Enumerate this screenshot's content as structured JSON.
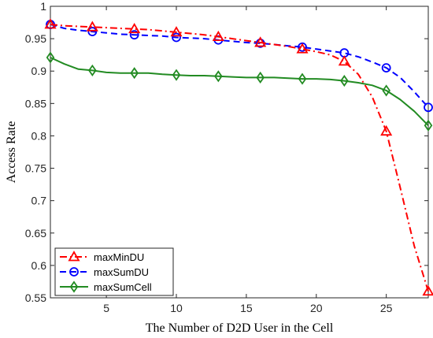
{
  "chart_data": {
    "type": "line",
    "title": "",
    "xlabel": "The Number of D2D User in the Cell",
    "ylabel": "Access Rate",
    "xlim": [
      1,
      28
    ],
    "ylim": [
      0.55,
      1.0
    ],
    "xticks": [
      5,
      10,
      15,
      20,
      25
    ],
    "yticks": [
      0.55,
      0.6,
      0.65,
      0.7,
      0.75,
      0.8,
      0.85,
      0.9,
      0.95,
      1
    ],
    "ytick_labels": [
      "0.55",
      "0.6",
      "0.65",
      "0.7",
      "0.75",
      "0.8",
      "0.85",
      "0.9",
      "0.95",
      "1"
    ],
    "legend_position": "bottom-left",
    "grid": false,
    "series": [
      {
        "name": "maxMinDU",
        "color": "#ff0000",
        "line_style": "dash-dot",
        "marker": "triangle",
        "x": [
          1,
          2,
          3,
          4,
          5,
          6,
          7,
          8,
          9,
          10,
          11,
          12,
          13,
          14,
          15,
          16,
          17,
          18,
          19,
          20,
          21,
          22,
          23,
          24,
          25,
          26,
          27,
          28
        ],
        "y": [
          0.972,
          0.97,
          0.969,
          0.968,
          0.967,
          0.966,
          0.965,
          0.964,
          0.962,
          0.96,
          0.958,
          0.956,
          0.953,
          0.95,
          0.947,
          0.944,
          0.941,
          0.938,
          0.934,
          0.93,
          0.925,
          0.915,
          0.895,
          0.86,
          0.807,
          0.72,
          0.63,
          0.56
        ],
        "marker_x": [
          1,
          4,
          7,
          10,
          13,
          16,
          19,
          22,
          25,
          28
        ]
      },
      {
        "name": "maxSumDU",
        "color": "#0000ff",
        "line_style": "dashed",
        "marker": "circle",
        "x": [
          1,
          2,
          3,
          4,
          5,
          6,
          7,
          8,
          9,
          10,
          11,
          12,
          13,
          14,
          15,
          16,
          17,
          18,
          19,
          20,
          21,
          22,
          23,
          24,
          25,
          26,
          27,
          28
        ],
        "y": [
          0.972,
          0.966,
          0.963,
          0.961,
          0.959,
          0.957,
          0.956,
          0.955,
          0.954,
          0.952,
          0.951,
          0.95,
          0.948,
          0.946,
          0.944,
          0.943,
          0.941,
          0.939,
          0.937,
          0.934,
          0.931,
          0.928,
          0.922,
          0.914,
          0.905,
          0.89,
          0.868,
          0.844
        ],
        "marker_x": [
          1,
          4,
          7,
          10,
          13,
          16,
          19,
          22,
          25,
          28
        ]
      },
      {
        "name": "maxSumCell",
        "color": "#228B22",
        "line_style": "solid",
        "marker": "diamond",
        "x": [
          1,
          2,
          3,
          4,
          5,
          6,
          7,
          8,
          9,
          10,
          11,
          12,
          13,
          14,
          15,
          16,
          17,
          18,
          19,
          20,
          21,
          22,
          23,
          24,
          25,
          26,
          27,
          28
        ],
        "y": [
          0.921,
          0.911,
          0.903,
          0.901,
          0.898,
          0.897,
          0.897,
          0.897,
          0.895,
          0.894,
          0.893,
          0.893,
          0.892,
          0.891,
          0.89,
          0.89,
          0.89,
          0.889,
          0.888,
          0.888,
          0.887,
          0.885,
          0.882,
          0.878,
          0.87,
          0.856,
          0.838,
          0.816
        ],
        "marker_x": [
          1,
          4,
          7,
          10,
          13,
          16,
          19,
          22,
          25,
          28
        ]
      }
    ]
  }
}
